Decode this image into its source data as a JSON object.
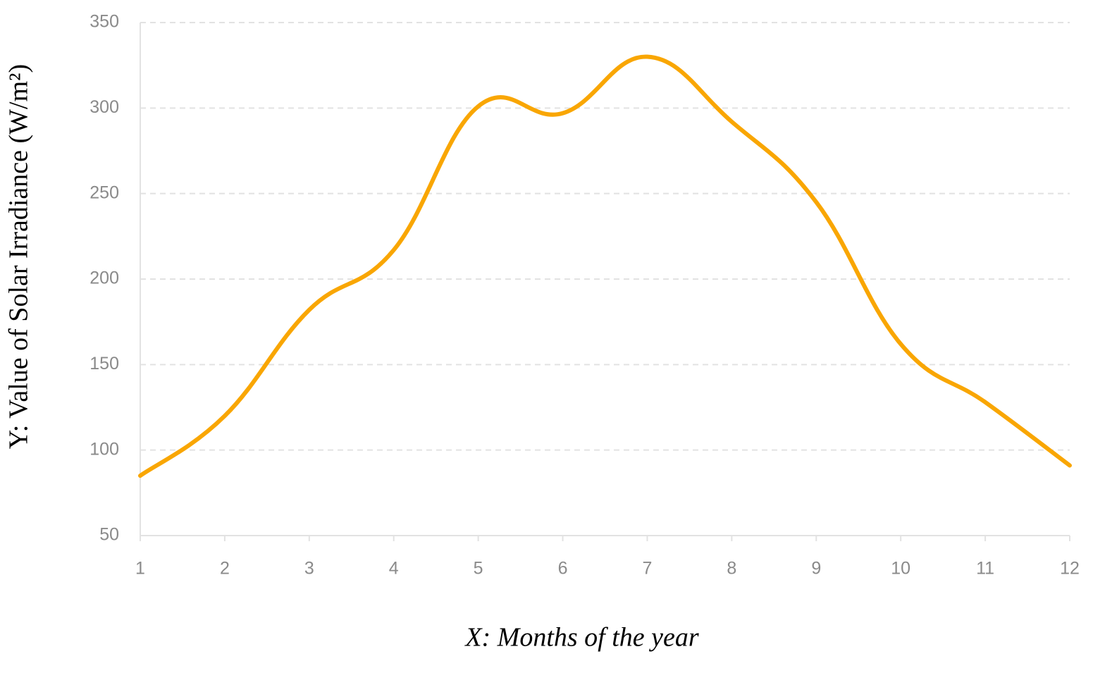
{
  "chart_data": {
    "type": "line",
    "x_label": "X: Months of the year",
    "y_label": "Y: Value of Solar Irradiance (W/m²)",
    "x": [
      1,
      2,
      3,
      4,
      5,
      6,
      7,
      8,
      9,
      10,
      11,
      12
    ],
    "series": [
      {
        "color": "#f9a602",
        "values": [
          85,
          120,
          182,
          217,
          301,
          297,
          330,
          292,
          245,
          162,
          128,
          91
        ]
      }
    ],
    "xlim": [
      1,
      12
    ],
    "xticks": [
      1,
      2,
      3,
      4,
      5,
      6,
      7,
      8,
      9,
      10,
      11,
      12
    ],
    "ylim": [
      50,
      350
    ],
    "yticks": [
      50,
      100,
      150,
      200,
      250,
      300,
      350
    ],
    "grid": true
  }
}
